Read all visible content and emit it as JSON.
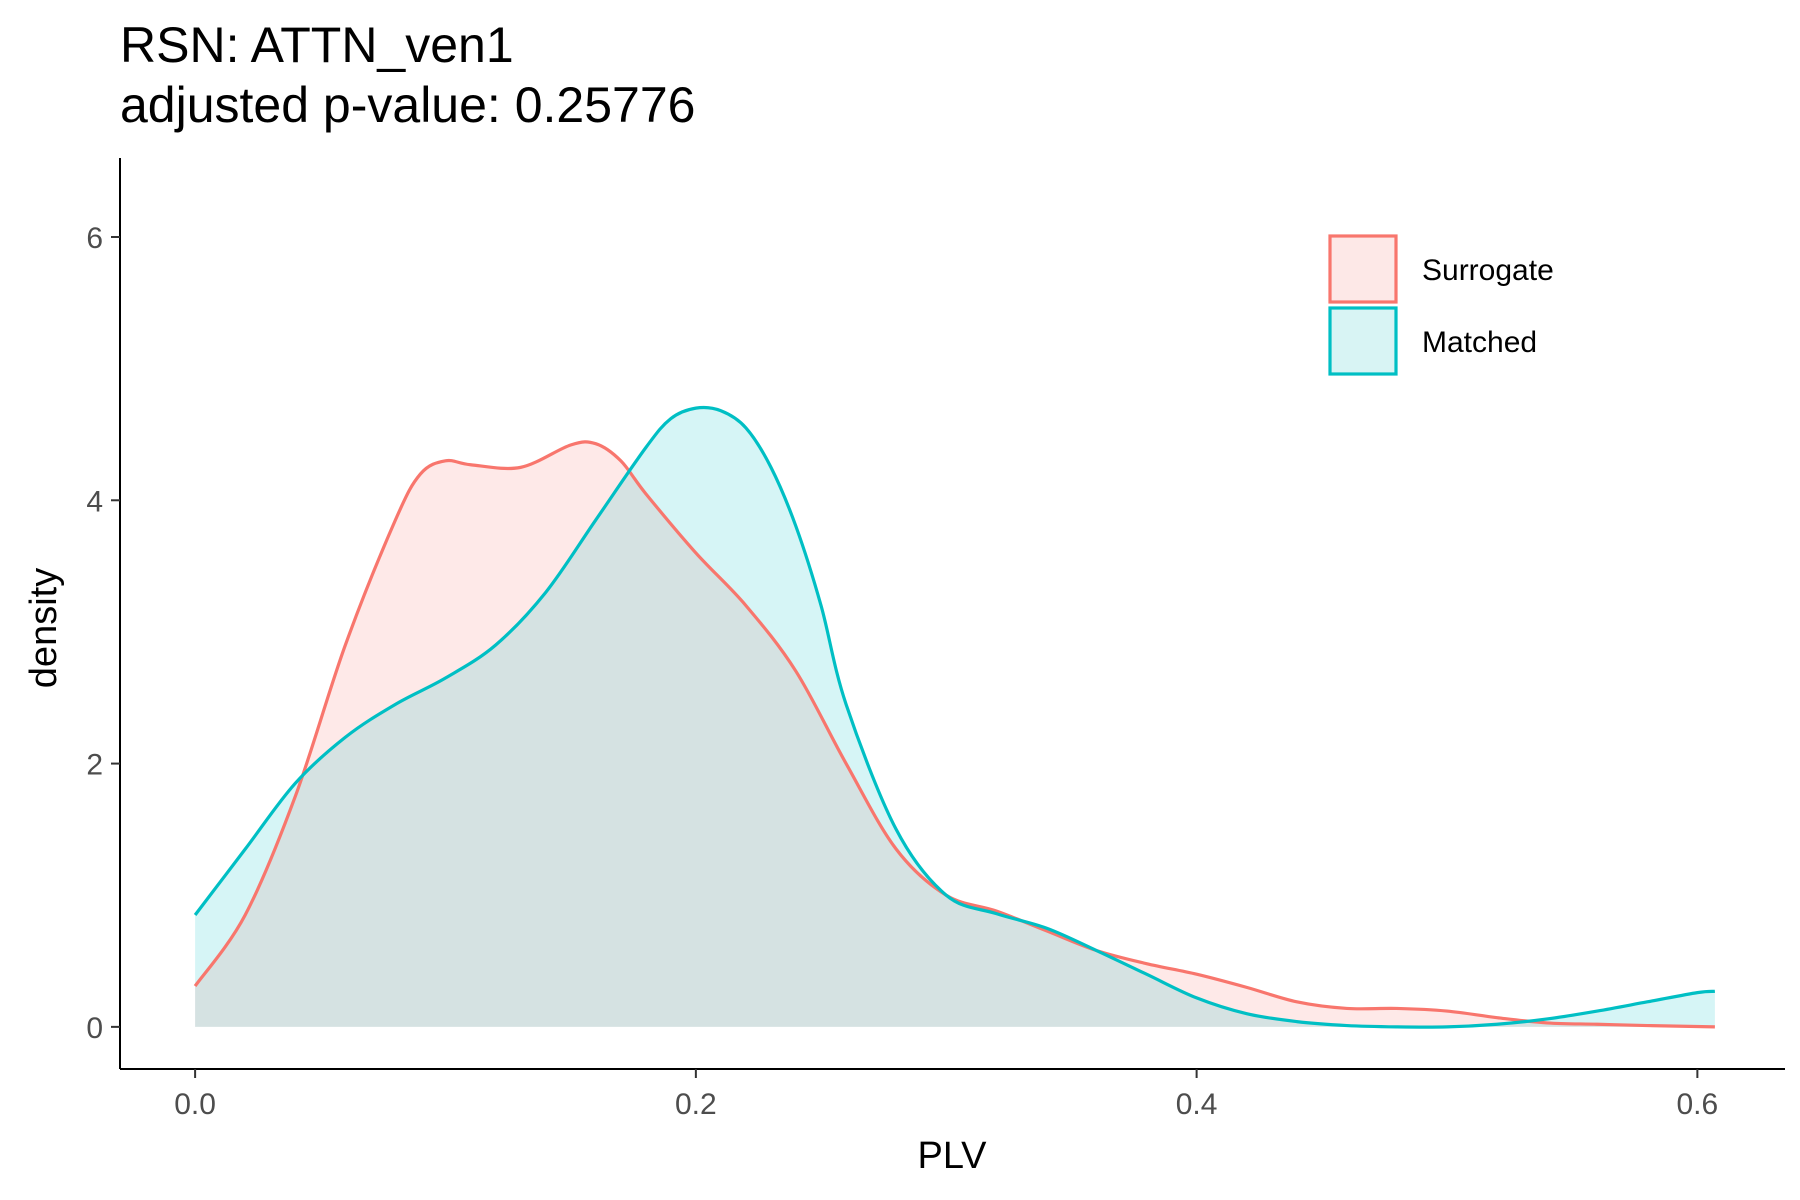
{
  "chart_data": {
    "type": "area",
    "title_line1": "RSN: ATTN_ven1",
    "title_line2": "adjusted p-value: 0.25776",
    "xlabel": "PLV",
    "ylabel": "density",
    "xlim": [
      -0.03,
      0.635
    ],
    "ylim": [
      -0.32,
      6.6
    ],
    "x_ticks": [
      0.0,
      0.2,
      0.4,
      0.6
    ],
    "x_tick_labels": [
      "0.0",
      "0.2",
      "0.4",
      "0.6"
    ],
    "y_ticks": [
      0,
      2,
      4,
      6
    ],
    "y_tick_labels": [
      "0",
      "2",
      "4",
      "6"
    ],
    "grid": false,
    "legend_position": "top-right",
    "series": [
      {
        "name": "Surrogate",
        "line_color": "#F8766D",
        "fill_color": "#FDE8E7",
        "x": [
          0.0,
          0.02,
          0.04,
          0.06,
          0.08,
          0.09,
          0.1,
          0.11,
          0.13,
          0.15,
          0.16,
          0.17,
          0.18,
          0.2,
          0.22,
          0.24,
          0.26,
          0.28,
          0.3,
          0.32,
          0.34,
          0.36,
          0.38,
          0.4,
          0.42,
          0.44,
          0.46,
          0.48,
          0.5,
          0.52,
          0.54,
          0.56,
          0.58,
          0.607
        ],
        "y": [
          0.31,
          0.85,
          1.75,
          2.9,
          3.85,
          4.2,
          4.3,
          4.27,
          4.25,
          4.42,
          4.43,
          4.3,
          4.05,
          3.6,
          3.2,
          2.7,
          2.0,
          1.35,
          1.0,
          0.88,
          0.73,
          0.58,
          0.48,
          0.4,
          0.3,
          0.19,
          0.14,
          0.14,
          0.12,
          0.07,
          0.03,
          0.02,
          0.01,
          0.0
        ]
      },
      {
        "name": "Matched",
        "line_color": "#00BFC4",
        "fill_color": "#D8F4F4",
        "x": [
          0.0,
          0.02,
          0.04,
          0.06,
          0.08,
          0.1,
          0.12,
          0.14,
          0.16,
          0.18,
          0.19,
          0.2,
          0.21,
          0.22,
          0.23,
          0.24,
          0.25,
          0.26,
          0.28,
          0.3,
          0.32,
          0.34,
          0.36,
          0.38,
          0.4,
          0.42,
          0.44,
          0.46,
          0.48,
          0.5,
          0.52,
          0.54,
          0.56,
          0.58,
          0.6,
          0.607
        ],
        "y": [
          0.85,
          1.35,
          1.85,
          2.2,
          2.45,
          2.65,
          2.9,
          3.3,
          3.85,
          4.4,
          4.62,
          4.7,
          4.68,
          4.55,
          4.25,
          3.8,
          3.2,
          2.45,
          1.5,
          1.0,
          0.86,
          0.75,
          0.58,
          0.4,
          0.22,
          0.1,
          0.04,
          0.01,
          0.0,
          0.0,
          0.02,
          0.06,
          0.12,
          0.19,
          0.26,
          0.27
        ]
      }
    ]
  }
}
